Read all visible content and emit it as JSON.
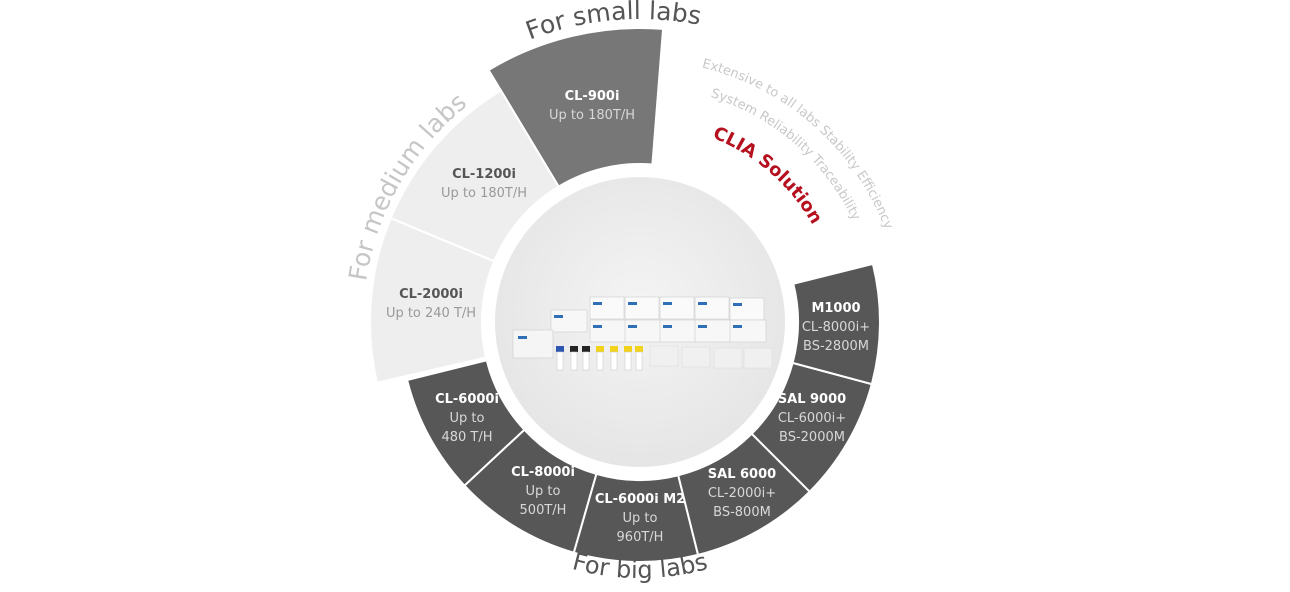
{
  "center_title": "CLIA Solution",
  "taglines": [
    "Extensive to all labs Stability Efficiency",
    "System Reliability Traceability"
  ],
  "groups": {
    "small": {
      "title": "For small labs",
      "color": "#777777"
    },
    "medium": {
      "title": "For medium labs",
      "color": "#eeeeee"
    },
    "big": {
      "title": "For big labs",
      "color": "#575757"
    }
  },
  "segments": [
    {
      "group": "small",
      "name": "CL-900i",
      "lines": [
        "Up to 180T/H"
      ]
    },
    {
      "group": "medium",
      "name": "CL-1200i",
      "lines": [
        "Up to 180T/H"
      ]
    },
    {
      "group": "medium",
      "name": "CL-2000i",
      "lines": [
        "Up to 240 T/H"
      ]
    },
    {
      "group": "big",
      "name": "CL-6000i",
      "lines": [
        "Up to",
        "480 T/H"
      ]
    },
    {
      "group": "big",
      "name": "CL-8000i",
      "lines": [
        "Up to",
        "500T/H"
      ]
    },
    {
      "group": "big",
      "name": "CL-6000i M2",
      "lines": [
        "Up to",
        "960T/H"
      ]
    },
    {
      "group": "big",
      "name": "SAL 6000",
      "lines": [
        "CL-2000i+",
        "BS-800M"
      ]
    },
    {
      "group": "big",
      "name": "SAL 9000",
      "lines": [
        "CL-6000i+",
        "BS-2000M"
      ]
    },
    {
      "group": "big",
      "name": "M1000",
      "lines": [
        "CL-8000i+",
        "BS-2800M"
      ]
    }
  ],
  "colors": {
    "accent_red": "#b5101e",
    "muted_text": "#c8c8c8",
    "hub": "#ebebeb"
  },
  "center_image": "reagent-kits-product-photo"
}
